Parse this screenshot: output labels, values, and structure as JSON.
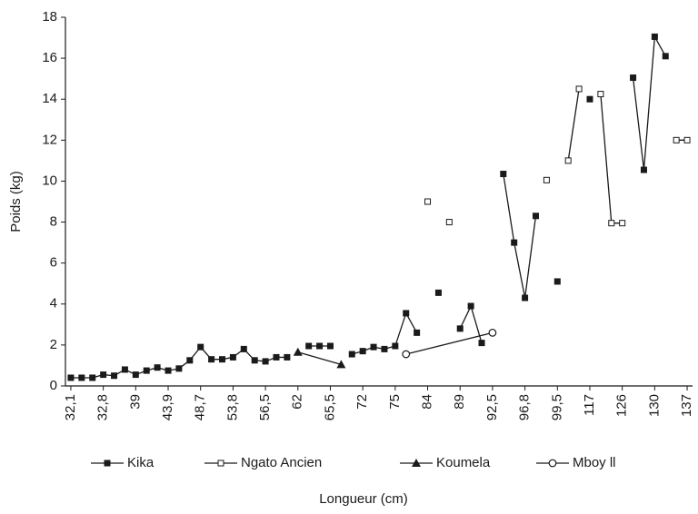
{
  "chart_data": {
    "type": "line",
    "y_label": "Poids (kg)",
    "x_label": "Longueur (cm)",
    "categories": [
      "32,1",
      null,
      null,
      "32,8",
      null,
      null,
      "39",
      null,
      null,
      "43,9",
      null,
      null,
      "48,7",
      null,
      null,
      "53,8",
      null,
      null,
      "56,5",
      null,
      null,
      "62",
      null,
      null,
      "65,5",
      null,
      null,
      "72",
      null,
      null,
      "75",
      null,
      null,
      "84",
      null,
      null,
      "89",
      null,
      null,
      "92,5",
      null,
      null,
      "96,8",
      null,
      null,
      "99,5",
      null,
      null,
      "117",
      null,
      null,
      "126",
      null,
      null,
      "130",
      null,
      null,
      "137"
    ],
    "series": [
      {
        "name": "Kika",
        "color": "#1a1a1a",
        "marker": "square",
        "connect_gaps": false,
        "values": [
          0.4,
          0.4,
          0.4,
          0.55,
          0.5,
          0.8,
          0.55,
          0.75,
          0.9,
          0.75,
          0.85,
          1.25,
          1.9,
          1.3,
          1.3,
          1.4,
          1.8,
          1.25,
          1.2,
          1.4,
          1.4,
          null,
          1.95,
          1.95,
          1.95,
          null,
          1.55,
          1.7,
          1.9,
          1.8,
          1.95,
          3.55,
          2.6,
          null,
          4.55,
          null,
          2.8,
          3.9,
          2.1,
          null,
          10.35,
          7.0,
          4.3,
          8.3,
          null,
          5.1,
          null,
          null,
          14.0,
          null,
          null,
          null,
          15.05,
          10.55,
          17.05,
          16.1,
          null,
          null
        ]
      },
      {
        "name": "Ngato Ancien",
        "color": "#1a1a1a",
        "marker": "square-open",
        "connect_gaps": false,
        "values": [
          null,
          null,
          null,
          null,
          null,
          null,
          null,
          null,
          null,
          null,
          null,
          null,
          null,
          null,
          null,
          null,
          null,
          null,
          null,
          null,
          null,
          null,
          null,
          null,
          null,
          null,
          null,
          null,
          null,
          null,
          null,
          null,
          null,
          9.0,
          null,
          8.0,
          null,
          null,
          null,
          null,
          null,
          null,
          null,
          null,
          10.05,
          null,
          11.0,
          14.5,
          null,
          14.25,
          7.95,
          7.95,
          null,
          null,
          null,
          null,
          12.0,
          12.0
        ]
      },
      {
        "name": "Koumela",
        "color": "#1a1a1a",
        "marker": "triangle",
        "connect_gaps": true,
        "values": [
          null,
          null,
          null,
          null,
          null,
          null,
          null,
          null,
          null,
          null,
          null,
          null,
          null,
          null,
          null,
          null,
          null,
          null,
          null,
          null,
          null,
          1.65,
          null,
          null,
          null,
          1.05,
          null,
          null,
          null,
          null,
          null,
          null,
          null,
          null,
          null,
          null,
          null,
          null,
          null,
          null,
          null,
          null,
          null,
          null,
          null,
          null,
          null,
          null,
          null,
          null,
          null,
          null,
          null,
          null,
          null,
          null,
          null,
          null
        ]
      },
      {
        "name": "Mboy ll",
        "color": "#1a1a1a",
        "marker": "circle-open",
        "connect_gaps": true,
        "values": [
          null,
          null,
          null,
          null,
          null,
          null,
          null,
          null,
          null,
          null,
          null,
          null,
          null,
          null,
          null,
          null,
          null,
          null,
          null,
          null,
          null,
          null,
          null,
          null,
          null,
          null,
          null,
          null,
          null,
          null,
          null,
          1.55,
          null,
          null,
          null,
          null,
          null,
          null,
          null,
          2.6,
          null,
          null,
          null,
          null,
          null,
          null,
          null,
          null,
          null,
          null,
          null,
          null,
          null,
          null,
          null,
          null,
          null,
          null
        ]
      }
    ],
    "ylim": [
      0,
      18
    ],
    "yticks": [
      0,
      2,
      4,
      6,
      8,
      10,
      12,
      14,
      16,
      18
    ],
    "grid": false,
    "legend": "bottom"
  }
}
